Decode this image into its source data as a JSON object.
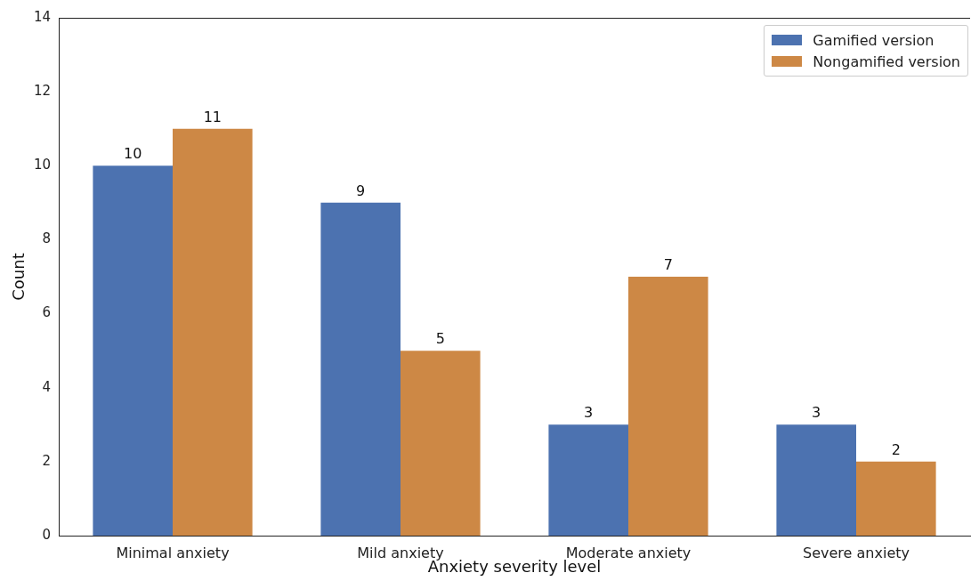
{
  "chart_data": {
    "type": "bar",
    "xlabel": "Anxiety severity level",
    "ylabel": "Count",
    "categories": [
      "Minimal anxiety",
      "Mild anxiety",
      "Moderate anxiety",
      "Severe anxiety"
    ],
    "series": [
      {
        "name": "Gamified version",
        "color": "#4c72b0",
        "values": [
          10,
          9,
          3,
          3
        ]
      },
      {
        "name": "Nongamified version",
        "color": "#cd8845",
        "values": [
          11,
          5,
          7,
          2
        ]
      }
    ],
    "ylim": [
      0,
      14
    ],
    "yticks": [
      0,
      2,
      4,
      6,
      8,
      10,
      12,
      14
    ],
    "grid": false,
    "legend": "top right",
    "data_labels": true
  }
}
